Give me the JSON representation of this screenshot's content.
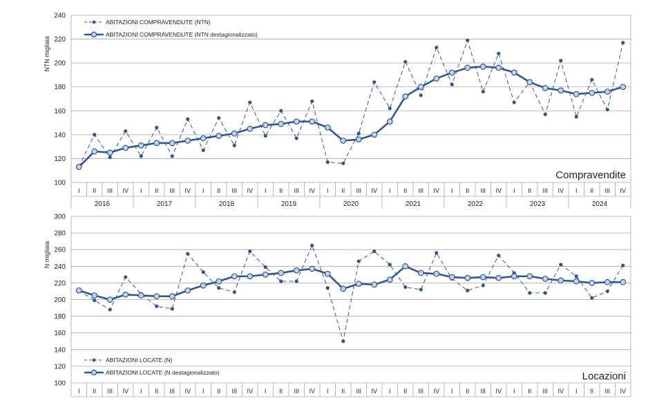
{
  "colors": {
    "dashed_line": "#2f5597",
    "solid_line": "#2f5597",
    "marker_fill": "#bdd7ee",
    "grid": "#a6a6a6"
  },
  "chart_data": [
    {
      "type": "line",
      "title": "Compravendite",
      "ylabel": "NTN migliaia",
      "ylim": [
        100,
        240
      ],
      "yticks": [
        100,
        120,
        140,
        160,
        180,
        200,
        220,
        240
      ],
      "grid": true,
      "legend_position": "top-left",
      "quarter_labels": [
        "I",
        "II",
        "III",
        "IV"
      ],
      "years": [
        "2016",
        "2017",
        "2018",
        "2019",
        "2020",
        "2021",
        "2022",
        "2023",
        "2024"
      ],
      "series": [
        {
          "name": "ABITAZIONI COMPRAVENDUTE (NTN)",
          "style": "dashed",
          "values": [
            113,
            140,
            121,
            143,
            122,
            146,
            122,
            153,
            127,
            154,
            131,
            167,
            139,
            160,
            137,
            168,
            117,
            116,
            141,
            184,
            162,
            201,
            173,
            213,
            182,
            219,
            176,
            208,
            167,
            184,
            157,
            202,
            155,
            186,
            161,
            217
          ]
        },
        {
          "name": "ABITAZIONI COMPRAVENDUTE (NTN destagionalizzato)",
          "style": "solid",
          "values": [
            113,
            126,
            125,
            129,
            131,
            133,
            133,
            135,
            137,
            139,
            141,
            145,
            148,
            149,
            151,
            151,
            146,
            135,
            136,
            140,
            151,
            172,
            180,
            187,
            192,
            196,
            197,
            196,
            192,
            184,
            179,
            177,
            174,
            175,
            176,
            180
          ]
        }
      ]
    },
    {
      "type": "line",
      "title": "Locazioni",
      "ylabel": "N migliaia",
      "ylim": [
        100,
        300
      ],
      "yticks": [
        100,
        120,
        140,
        160,
        180,
        200,
        220,
        240,
        260,
        280,
        300
      ],
      "grid": true,
      "legend_position": "bottom-left",
      "quarter_labels": [
        "I",
        "II",
        "III",
        "IV"
      ],
      "series": [
        {
          "name": "ABITAZIONI LOCATE (N)",
          "style": "dashed",
          "values": [
            211,
            199,
            188,
            227,
            207,
            192,
            189,
            255,
            233,
            214,
            209,
            258,
            239,
            222,
            222,
            265,
            214,
            150,
            246,
            258,
            242,
            215,
            212,
            256,
            225,
            211,
            217,
            253,
            232,
            208,
            208,
            242,
            228,
            202,
            210,
            241
          ]
        },
        {
          "name": "ABITAZIONI LOCATE (N destagionalizzato)",
          "style": "solid",
          "values": [
            211,
            205,
            200,
            206,
            205,
            204,
            204,
            211,
            217,
            222,
            228,
            228,
            230,
            232,
            235,
            237,
            231,
            213,
            219,
            218,
            224,
            240,
            232,
            231,
            227,
            226,
            227,
            226,
            228,
            228,
            225,
            223,
            222,
            220,
            221,
            221
          ]
        }
      ]
    }
  ]
}
